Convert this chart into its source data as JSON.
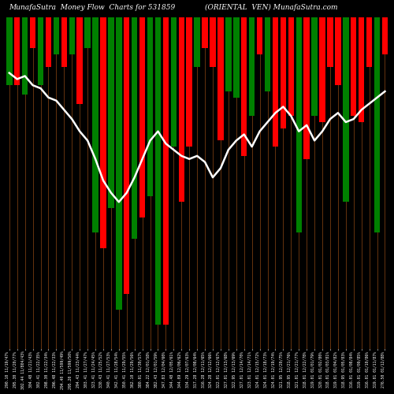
{
  "title_left": "MunafaSutra  Money Flow  Charts for 531859",
  "title_right": "(ORIENTAL  VEN) MunafaSutra.com",
  "background_color": "#000000",
  "bar_colors": [
    "green",
    "red",
    "green",
    "red",
    "green",
    "red",
    "green",
    "red",
    "green",
    "red",
    "green",
    "green",
    "red",
    "green",
    "green",
    "red",
    "green",
    "red",
    "green",
    "green",
    "red",
    "green",
    "red",
    "red",
    "green",
    "red",
    "red",
    "red",
    "green",
    "green",
    "red",
    "green",
    "red",
    "green",
    "red",
    "red",
    "red",
    "green",
    "red",
    "green",
    "red",
    "red",
    "red",
    "green",
    "red",
    "red",
    "red",
    "green",
    "red"
  ],
  "bar_heights": [
    22,
    22,
    25,
    10,
    22,
    16,
    12,
    16,
    12,
    28,
    10,
    70,
    75,
    62,
    95,
    90,
    72,
    65,
    58,
    100,
    100,
    42,
    60,
    42,
    16,
    10,
    16,
    40,
    24,
    26,
    45,
    32,
    12,
    24,
    42,
    36,
    32,
    70,
    46,
    32,
    34,
    16,
    22,
    60,
    32,
    34,
    16,
    70,
    12
  ],
  "line_values": [
    18,
    20,
    19,
    22,
    23,
    26,
    27,
    30,
    33,
    37,
    40,
    46,
    53,
    57,
    60,
    57,
    52,
    46,
    40,
    37,
    41,
    43,
    45,
    46,
    45,
    47,
    52,
    49,
    43,
    40,
    38,
    42,
    37,
    34,
    31,
    29,
    32,
    37,
    35,
    40,
    37,
    33,
    31,
    34,
    33,
    30,
    28,
    26,
    24
  ],
  "labels": [
    "290.10 11/19/47%",
    "295.30 11/20/77%",
    "302.44 11/804/43%",
    "304.48 11/21/43%",
    "302.41 11/22/35%",
    "298.30 11/22/34%",
    "296.48 11/22/33%",
    "294.40 11/599/49%",
    "295.20 11/599/50%",
    "294.43 11/23/44%",
    "303.41 11/27/47%",
    "323.41 11/24/45%",
    "330.43 11/25/52%",
    "340.41 11/27/53%",
    "342.41 11/28/54%",
    "350.41 11/29/55%",
    "362.10 11/29/56%",
    "380.01 11/30/57%",
    "384.22 12/01/58%",
    "382.43 12/01/59%",
    "347.03 12/04/60%",
    "344.48 12/05/61%",
    "344.09 12/06/62%",
    "334.29 12/07/63%",
    "317.28 12/08/64%",
    "316.28 12/11/65%",
    "324.28 12/12/66%",
    "322.01 12/12/67%",
    "327.01 12/13/68%",
    "322.95 12/13/69%",
    "327.01 12/14/70%",
    "323.01 12/14/71%",
    "324.01 12/15/72%",
    "324.01 12/18/73%",
    "324.01 12/19/74%",
    "321.95 12/20/75%",
    "318.95 12/21/76%",
    "321.01 12/21/77%",
    "318.01 12/22/78%",
    "319.01 01/01/79%",
    "320.01 01/02/80%",
    "318.01 01/03/81%",
    "319.01 01/04/82%",
    "318.95 01/05/83%",
    "316.01 01/08/84%",
    "319.01 01/09/85%",
    "316.01 01/10/86%",
    "319.01 01/11/87%",
    "276.50 01/12/88%"
  ],
  "grid_color": "#8B4513",
  "line_color": "#ffffff",
  "line_width": 1.8,
  "bar_width": 0.75,
  "title_fontsize": 6.5,
  "label_fontsize": 3.5,
  "figsize": [
    5.0,
    5.0
  ],
  "dpi": 100
}
